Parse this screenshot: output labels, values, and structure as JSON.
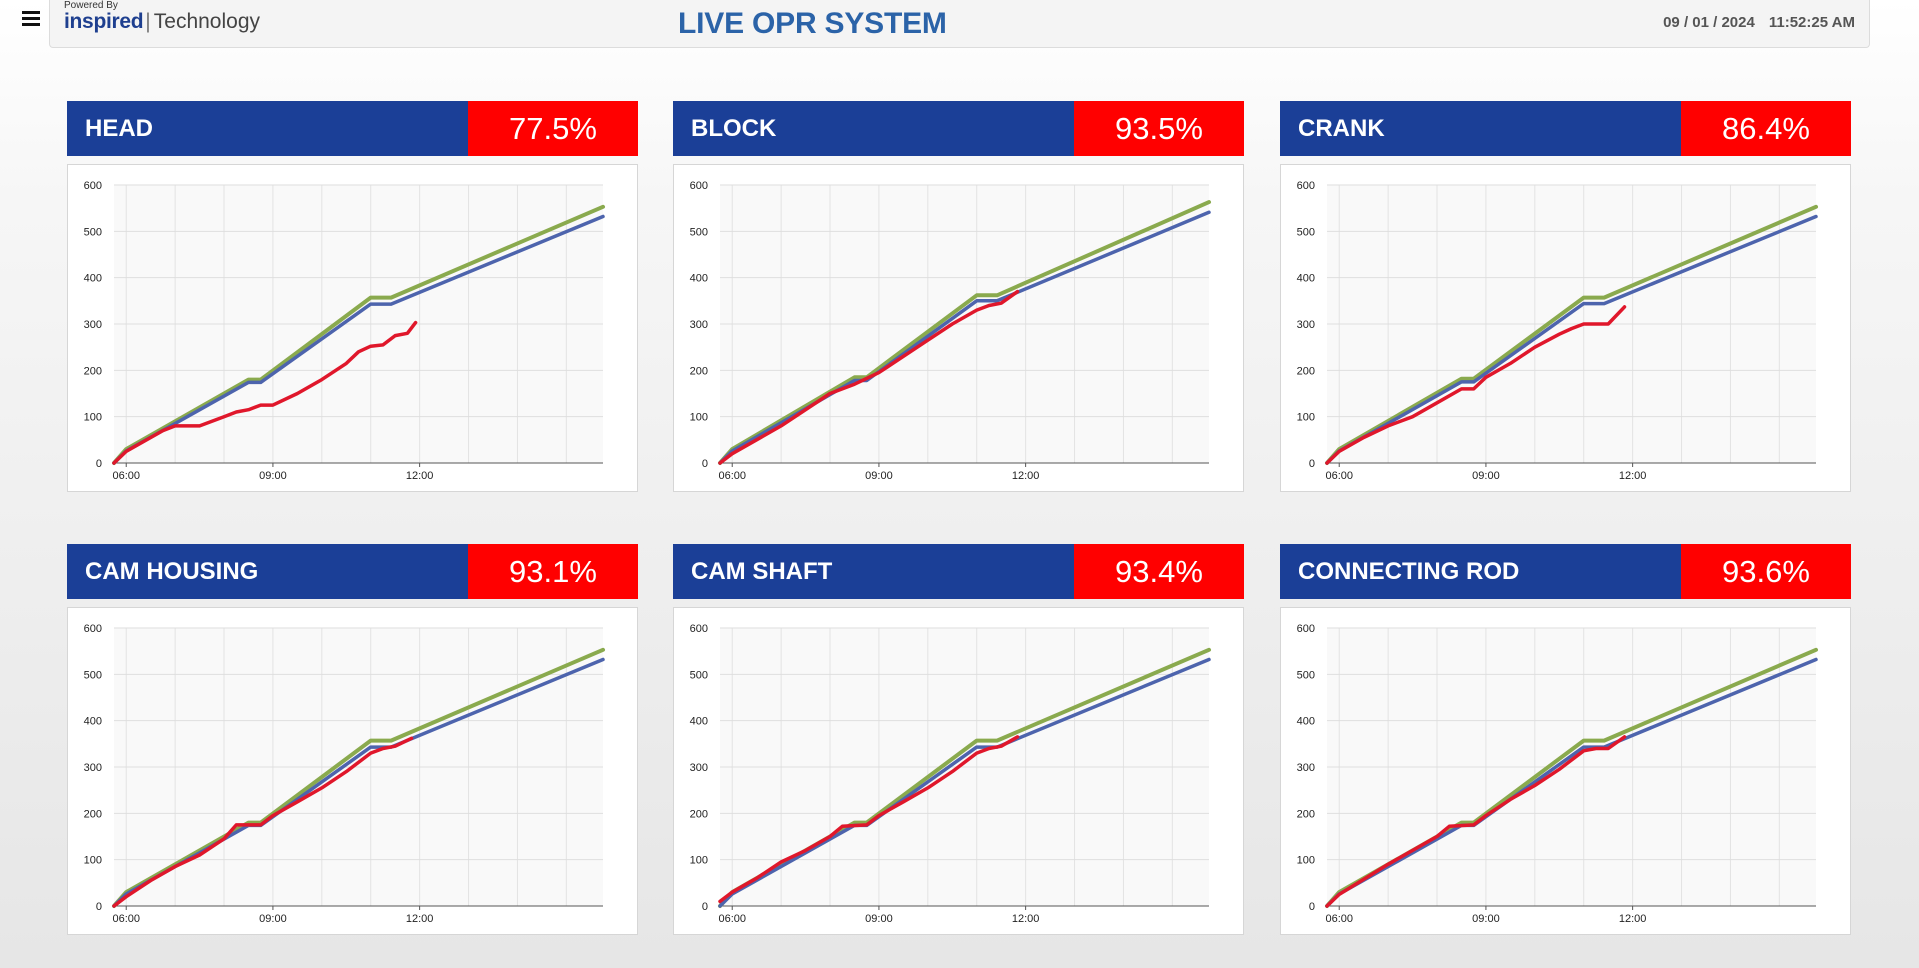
{
  "header": {
    "powered_by": "Powered By",
    "brand_name": "inspired",
    "brand_suffix": "Technology",
    "title": "LIVE OPR SYSTEM",
    "date": "09 / 01 / 2024",
    "time": "11:52:25 AM"
  },
  "colors": {
    "target": "#8aaa4e",
    "plan": "#4d64ad",
    "actual": "#e0172b",
    "name_bar": "#1b3f97",
    "pct_bar": "#ff0000",
    "title": "#2b63a8"
  },
  "panels": [
    {
      "name": "HEAD",
      "percent": "77.5%"
    },
    {
      "name": "BLOCK",
      "percent": "93.5%"
    },
    {
      "name": "CRANK",
      "percent": "86.4%"
    },
    {
      "name": "CAM HOUSING",
      "percent": "93.1%"
    },
    {
      "name": "CAM SHAFT",
      "percent": "93.4%"
    },
    {
      "name": "CONNECTING ROD",
      "percent": "93.6%"
    }
  ],
  "chart_data": [
    {
      "type": "line",
      "ylim": [
        0,
        600
      ],
      "xlim": [
        "05:45",
        "15:45"
      ],
      "yticks": [
        0,
        100,
        200,
        300,
        400,
        500,
        600
      ],
      "xticks": [
        "06:00",
        "09:00",
        "12:00"
      ],
      "series": [
        {
          "x": [
            "05:45",
            "06:00",
            "08:30",
            "08:45",
            "11:00",
            "11:25",
            "15:45"
          ],
          "values": [
            0,
            30,
            180,
            180,
            357,
            357,
            553
          ]
        },
        {
          "x": [
            "05:45",
            "06:00",
            "08:30",
            "08:45",
            "11:00",
            "11:25",
            "15:45"
          ],
          "values": [
            0,
            26,
            174,
            174,
            343,
            343,
            532
          ]
        },
        {
          "x": [
            "05:45",
            "06:00",
            "06:45",
            "07:00",
            "07:15",
            "07:30",
            "08:00",
            "08:15",
            "08:30",
            "08:45",
            "09:00",
            "09:30",
            "10:00",
            "10:30",
            "10:45",
            "11:00",
            "11:15",
            "11:30",
            "11:45",
            "11:55"
          ],
          "values": [
            0,
            25,
            70,
            80,
            80,
            80,
            100,
            110,
            115,
            125,
            125,
            150,
            180,
            215,
            240,
            252,
            255,
            275,
            280,
            303
          ]
        }
      ]
    },
    {
      "type": "line",
      "ylim": [
        0,
        600
      ],
      "xlim": [
        "05:45",
        "15:45"
      ],
      "yticks": [
        0,
        100,
        200,
        300,
        400,
        500,
        600
      ],
      "xticks": [
        "06:00",
        "09:00",
        "12:00"
      ],
      "series": [
        {
          "x": [
            "05:45",
            "06:00",
            "08:30",
            "08:45",
            "11:00",
            "11:25",
            "15:45"
          ],
          "values": [
            0,
            30,
            185,
            185,
            362,
            362,
            563
          ]
        },
        {
          "x": [
            "05:45",
            "06:00",
            "08:30",
            "08:45",
            "11:00",
            "11:25",
            "15:45"
          ],
          "values": [
            0,
            26,
            178,
            178,
            350,
            350,
            541
          ]
        },
        {
          "x": [
            "05:45",
            "06:00",
            "07:00",
            "08:00",
            "08:30",
            "09:00",
            "10:00",
            "10:30",
            "11:00",
            "11:15",
            "11:30",
            "11:50"
          ],
          "values": [
            0,
            20,
            80,
            150,
            170,
            195,
            265,
            300,
            330,
            340,
            345,
            370
          ]
        }
      ]
    },
    {
      "type": "line",
      "ylim": [
        0,
        600
      ],
      "xlim": [
        "05:45",
        "15:45"
      ],
      "yticks": [
        0,
        100,
        200,
        300,
        400,
        500,
        600
      ],
      "xticks": [
        "06:00",
        "09:00",
        "12:00"
      ],
      "series": [
        {
          "x": [
            "05:45",
            "06:00",
            "08:30",
            "08:45",
            "11:00",
            "11:25",
            "15:45"
          ],
          "values": [
            0,
            30,
            182,
            182,
            357,
            357,
            553
          ]
        },
        {
          "x": [
            "05:45",
            "06:00",
            "08:30",
            "08:45",
            "11:00",
            "11:25",
            "15:45"
          ],
          "values": [
            0,
            26,
            175,
            175,
            344,
            344,
            532
          ]
        },
        {
          "x": [
            "05:45",
            "06:00",
            "06:30",
            "07:00",
            "07:30",
            "08:00",
            "08:30",
            "08:45",
            "09:00",
            "09:30",
            "10:00",
            "10:30",
            "10:45",
            "11:00",
            "11:30",
            "11:50"
          ],
          "values": [
            0,
            25,
            55,
            80,
            100,
            130,
            160,
            160,
            185,
            215,
            250,
            278,
            290,
            300,
            300,
            337
          ]
        }
      ]
    },
    {
      "type": "line",
      "ylim": [
        0,
        600
      ],
      "xlim": [
        "05:45",
        "15:45"
      ],
      "yticks": [
        0,
        100,
        200,
        300,
        400,
        500,
        600
      ],
      "xticks": [
        "06:00",
        "09:00",
        "12:00"
      ],
      "series": [
        {
          "x": [
            "05:45",
            "06:00",
            "08:30",
            "08:45",
            "11:00",
            "11:25",
            "15:45"
          ],
          "values": [
            0,
            30,
            180,
            180,
            357,
            357,
            553
          ]
        },
        {
          "x": [
            "05:45",
            "06:00",
            "08:30",
            "08:45",
            "11:00",
            "11:25",
            "15:45"
          ],
          "values": [
            0,
            26,
            174,
            174,
            343,
            343,
            532
          ]
        },
        {
          "x": [
            "05:45",
            "06:00",
            "06:30",
            "07:00",
            "07:30",
            "08:00",
            "08:15",
            "08:45",
            "09:00",
            "09:30",
            "10:00",
            "10:30",
            "11:00",
            "11:15",
            "11:30",
            "11:50"
          ],
          "values": [
            0,
            20,
            55,
            85,
            110,
            145,
            175,
            175,
            195,
            225,
            255,
            290,
            330,
            340,
            345,
            362
          ]
        }
      ]
    },
    {
      "type": "line",
      "ylim": [
        0,
        600
      ],
      "xlim": [
        "05:45",
        "15:45"
      ],
      "yticks": [
        0,
        100,
        200,
        300,
        400,
        500,
        600
      ],
      "xticks": [
        "06:00",
        "09:00",
        "12:00"
      ],
      "series": [
        {
          "x": [
            "05:45",
            "06:00",
            "08:30",
            "08:45",
            "11:00",
            "11:25",
            "15:45"
          ],
          "values": [
            0,
            30,
            180,
            180,
            357,
            357,
            553
          ]
        },
        {
          "x": [
            "05:45",
            "06:00",
            "08:30",
            "08:45",
            "11:00",
            "11:25",
            "15:45"
          ],
          "values": [
            0,
            26,
            174,
            174,
            343,
            343,
            532
          ]
        },
        {
          "x": [
            "05:45",
            "06:00",
            "06:30",
            "07:00",
            "07:30",
            "08:00",
            "08:15",
            "08:45",
            "09:00",
            "09:30",
            "10:00",
            "10:30",
            "11:00",
            "11:15",
            "11:30",
            "11:50"
          ],
          "values": [
            10,
            30,
            60,
            95,
            120,
            150,
            172,
            175,
            195,
            225,
            255,
            290,
            330,
            340,
            345,
            365
          ]
        }
      ]
    },
    {
      "type": "line",
      "ylim": [
        0,
        600
      ],
      "xlim": [
        "05:45",
        "15:45"
      ],
      "yticks": [
        0,
        100,
        200,
        300,
        400,
        500,
        600
      ],
      "xticks": [
        "06:00",
        "09:00",
        "12:00"
      ],
      "series": [
        {
          "x": [
            "05:45",
            "06:00",
            "08:30",
            "08:45",
            "11:00",
            "11:25",
            "15:45"
          ],
          "values": [
            0,
            30,
            180,
            180,
            357,
            357,
            553
          ]
        },
        {
          "x": [
            "05:45",
            "06:00",
            "08:30",
            "08:45",
            "11:00",
            "11:25",
            "15:45"
          ],
          "values": [
            0,
            26,
            174,
            174,
            343,
            343,
            532
          ]
        },
        {
          "x": [
            "05:45",
            "06:00",
            "07:00",
            "08:00",
            "08:15",
            "08:45",
            "09:00",
            "09:30",
            "10:00",
            "10:30",
            "11:00",
            "11:15",
            "11:30",
            "11:50"
          ],
          "values": [
            0,
            25,
            90,
            150,
            172,
            175,
            195,
            230,
            260,
            295,
            335,
            340,
            340,
            365
          ]
        }
      ]
    }
  ]
}
